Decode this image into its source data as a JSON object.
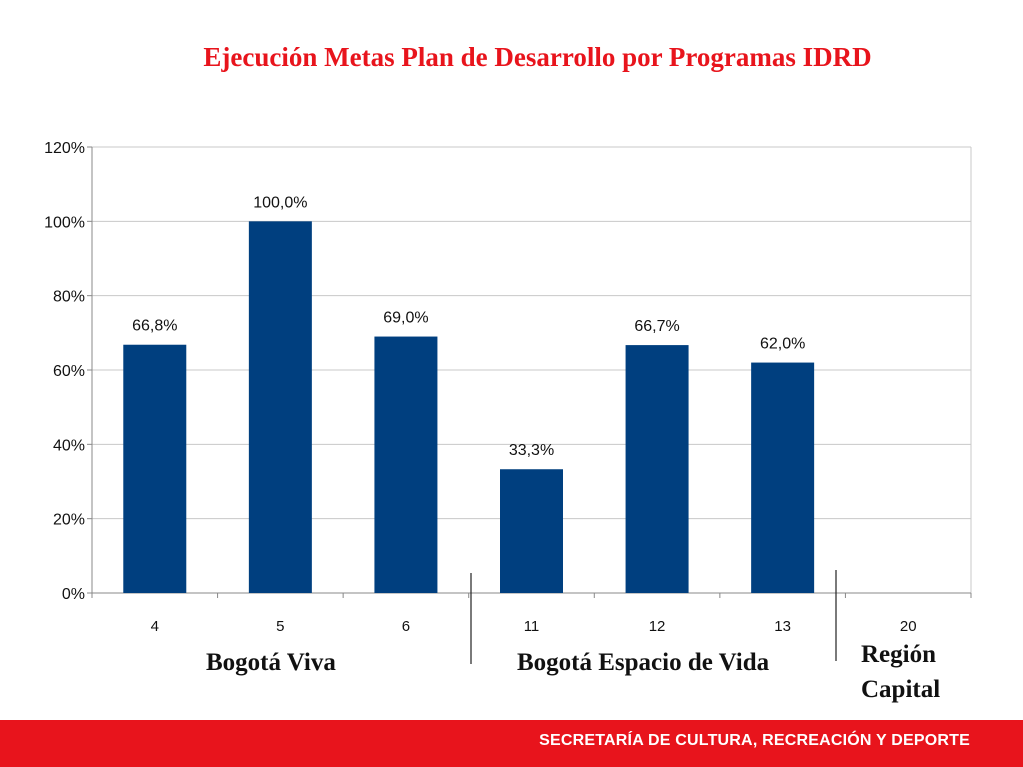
{
  "title": "Ejecución Metas Plan de Desarrollo por Programas IDRD",
  "chart_data": {
    "type": "bar",
    "categories": [
      "4",
      "5",
      "6",
      "11",
      "12",
      "13",
      "20"
    ],
    "values": [
      66.8,
      100.0,
      69.0,
      33.3,
      66.7,
      62.0,
      null
    ],
    "value_labels": [
      "66,8%",
      "100,0%",
      "69,0%",
      "33,3%",
      "66,7%",
      "62,0%",
      ""
    ],
    "ylim": [
      0,
      120
    ],
    "yticks": [
      0,
      20,
      40,
      60,
      80,
      100,
      120
    ],
    "ytick_labels": [
      "0%",
      "20%",
      "40%",
      "60%",
      "80%",
      "100%",
      "120%"
    ],
    "grid": true,
    "bar_color": "#003f7f",
    "groups": [
      {
        "label": "Bogotá Viva",
        "categories": [
          "4",
          "5",
          "6"
        ]
      },
      {
        "label": "Bogotá Espacio de Vida",
        "categories": [
          "11",
          "12",
          "13"
        ]
      },
      {
        "label": "Región Capital",
        "categories": [
          "20"
        ]
      }
    ]
  },
  "footer": {
    "text": "SECRETARÍA DE CULTURA, RECREACIÓN Y DEPORTE",
    "color": "#e8141c"
  }
}
